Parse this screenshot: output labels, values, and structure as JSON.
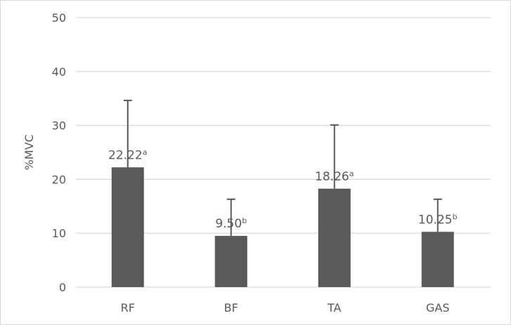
{
  "chart_data": {
    "type": "bar",
    "title": "",
    "xlabel": "",
    "ylabel": "%MVC",
    "ylim": [
      0,
      50
    ],
    "yticks": [
      0,
      10,
      20,
      30,
      40,
      50
    ],
    "grid": true,
    "categories": [
      "RF",
      "BF",
      "TA",
      "GAS"
    ],
    "values": [
      22.22,
      9.5,
      18.26,
      10.25
    ],
    "error_plus": [
      12.4,
      6.8,
      11.8,
      6.05
    ],
    "data_labels": [
      "22.22",
      "9.50",
      "18.26",
      "10.25"
    ],
    "significance": [
      "a",
      "b",
      "a",
      "b"
    ],
    "bar_color": "#595959",
    "grid_color": "#d9d9d9"
  }
}
